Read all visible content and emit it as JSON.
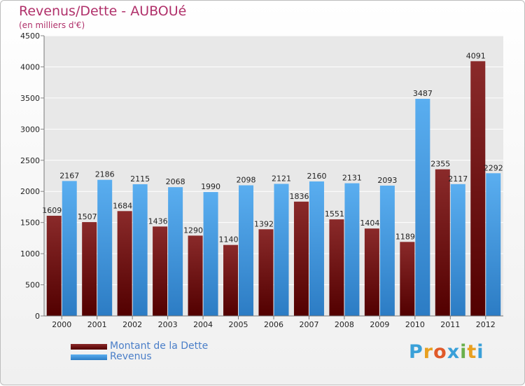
{
  "header": {
    "title": "Revenus/Dette - AUBOUé",
    "subtitle": "(en milliers d'€)"
  },
  "chart_data": {
    "type": "bar",
    "title": "Revenus/Dette - AUBOUé",
    "ylabel": "(en milliers d'€)",
    "xlabel": "",
    "categories": [
      "2000",
      "2001",
      "2002",
      "2003",
      "2004",
      "2005",
      "2006",
      "2007",
      "2008",
      "2009",
      "2010",
      "2011",
      "2012"
    ],
    "series": [
      {
        "name": "Montant de la Dette",
        "values": [
          1609,
          1507,
          1684,
          1436,
          1290,
          1140,
          1392,
          1836,
          1551,
          1404,
          1189,
          2355,
          4091
        ],
        "color": "#6e1414"
      },
      {
        "name": "Revenus",
        "values": [
          2167,
          2186,
          2115,
          2068,
          1990,
          2098,
          2121,
          2160,
          2131,
          2093,
          3487,
          2117,
          2292
        ],
        "color": "#3d8fd6"
      }
    ],
    "ylim": [
      0,
      4500
    ],
    "yticks": [
      0,
      500,
      1000,
      1500,
      2000,
      2500,
      3000,
      3500,
      4000,
      4500
    ],
    "grid": true,
    "legend": "bottom-left"
  },
  "legend": {
    "items": [
      {
        "label": "Montant de la Dette",
        "color": "#6e1414"
      },
      {
        "label": "Revenus",
        "color": "#3d8fd6"
      }
    ]
  },
  "logo": {
    "text": "Proxiti",
    "letter_colors": [
      "#3aa0d8",
      "#e8a020",
      "#e05a2a",
      "#3aa0d8",
      "#6ab04c",
      "#e8a020",
      "#3aa0d8"
    ]
  }
}
